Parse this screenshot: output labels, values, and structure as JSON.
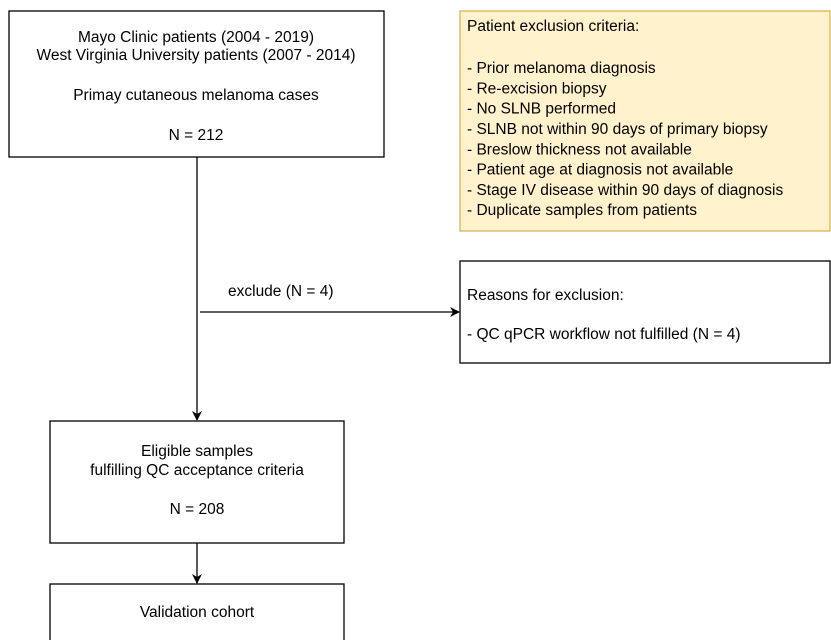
{
  "nodes": [
    {
      "lines": [
        "Mayo Clinic patients (2004 - 2019)",
        "West Virginia University patients (2007 - 2014)",
        "Primay cutaneous melanoma cases",
        "N = 212"
      ]
    },
    {
      "lines": [
        "Eligible samples",
        "fulfilling QC acceptance criteria",
        "N = 208"
      ]
    },
    {
      "lines": [
        "Validation cohort"
      ]
    }
  ],
  "exclusion_criteria": {
    "title": "Patient exclusion criteria:",
    "items": [
      "- Prior melanoma diagnosis",
      "- Re-excision biopsy",
      "- No SLNB performed",
      "- SLNB not within 90 days of primary biopsy",
      "- Breslow thickness not available",
      "- Patient age at diagnosis not available",
      "- Stage IV disease within 90 days of diagnosis",
      "- Duplicate samples from patients"
    ]
  },
  "exclusion_step": {
    "label": "exclude (N = 4)",
    "title": "Reasons for exclusion:",
    "items": [
      "- QC qPCR workflow not fulfilled (N = 4)"
    ]
  }
}
